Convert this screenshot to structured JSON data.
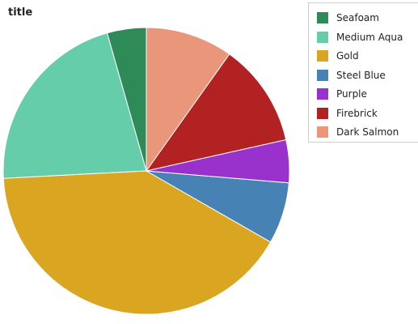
{
  "chart_data": {
    "type": "pie",
    "title": "title",
    "legend_position": "right",
    "start_angle_deg": 90,
    "direction": "counterclockwise",
    "series": [
      {
        "name": "Seafoam",
        "value": 4.4,
        "color": "#2e8b57"
      },
      {
        "name": "Medium Aqua",
        "value": 21.3,
        "color": "#66cdaa"
      },
      {
        "name": "Gold",
        "value": 40.7,
        "color": "#daa520"
      },
      {
        "name": "Steel Blue",
        "value": 6.9,
        "color": "#4682b4"
      },
      {
        "name": "Purple",
        "value": 4.8,
        "color": "#9932cc"
      },
      {
        "name": "Firebrick",
        "value": 11.6,
        "color": "#b22222"
      },
      {
        "name": "Dark Salmon",
        "value": 9.8,
        "color": "#e9967a"
      }
    ]
  }
}
